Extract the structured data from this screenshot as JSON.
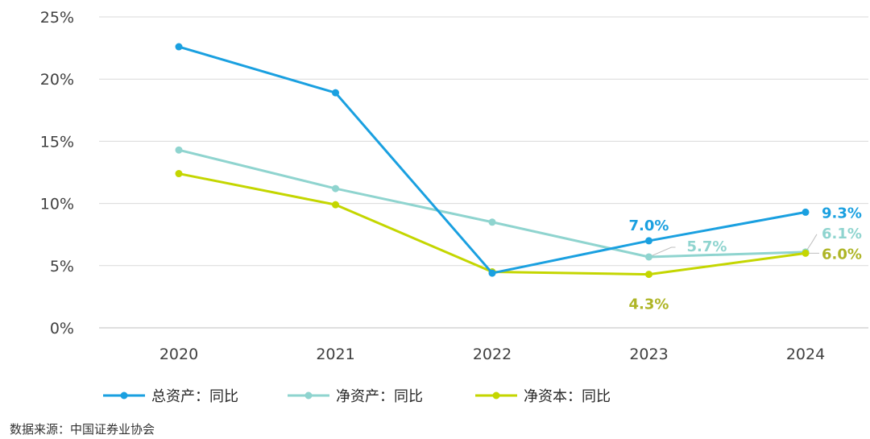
{
  "chart_data": {
    "type": "line",
    "categories": [
      "2020",
      "2021",
      "2022",
      "2023",
      "2024"
    ],
    "ylim": [
      0,
      25
    ],
    "yticks": [
      0,
      5,
      10,
      15,
      20,
      25
    ],
    "ytick_labels": [
      "0%",
      "5%",
      "10%",
      "15%",
      "20%",
      "25%"
    ],
    "grid": true,
    "legend_position": "bottom-left",
    "series": [
      {
        "name": "总资产：同比",
        "color": "#1aa0e0",
        "values": [
          22.6,
          18.9,
          4.4,
          7.0,
          9.3
        ],
        "data_labels": [
          {
            "index": 3,
            "text": "7.0%"
          },
          {
            "index": 4,
            "text": "9.3%"
          }
        ]
      },
      {
        "name": "净资产：同比",
        "color": "#8fd4cf",
        "values": [
          14.3,
          11.2,
          8.5,
          5.7,
          6.1
        ],
        "data_labels": [
          {
            "index": 3,
            "text": "5.7%"
          },
          {
            "index": 4,
            "text": "6.1%"
          }
        ]
      },
      {
        "name": "净资本：同比",
        "color": "#c4d600",
        "label_color": "#aeb526",
        "values": [
          12.4,
          9.9,
          4.5,
          4.3,
          6.0
        ],
        "data_labels": [
          {
            "index": 3,
            "text": "4.3%"
          },
          {
            "index": 4,
            "text": "6.0%"
          }
        ]
      }
    ]
  },
  "source": "数据来源：中国证券业协会"
}
